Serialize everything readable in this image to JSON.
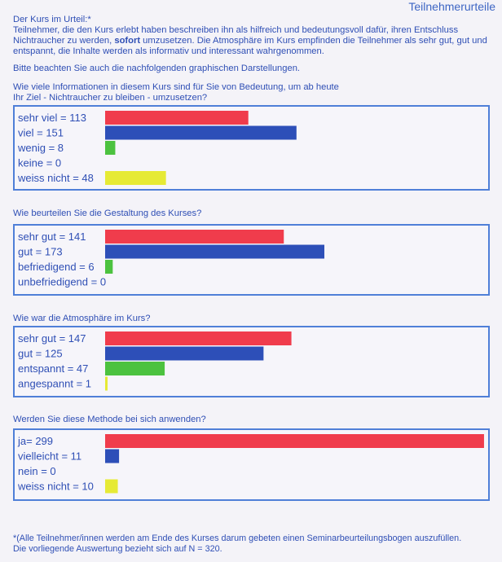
{
  "header": {
    "title": "Teilnehmerurteile"
  },
  "intro": {
    "heading": "Der Kurs im Urteil:*",
    "text_before": "Teilnehmer, die den Kurs erlebt haben beschreiben ihn als hilfreich und bedeutungsvoll dafür, ihren Entschluss Nichtraucher zu werden, ",
    "text_bold": "sofort",
    "text_after": " umzusetzen. Die Atmosphäre im Kurs empfinden die Teilnehmer als sehr gut, gut und entspannt, die Inhalte werden als informativ und interessant wahrgenommen.",
    "note": "Bitte beachten Sie auch die nachfolgenden graphischen Darstellungen."
  },
  "colors": {
    "red": "#f03c4c",
    "blue": "#2d4fb8",
    "green": "#4cc23f",
    "yellow": "#e6ea35",
    "frame": "#4f7fd8",
    "text": "#2f4fb5"
  },
  "chart_data": [
    {
      "type": "bar",
      "orientation": "horizontal",
      "title": "Wie viele Informationen in diesem Kurs sind für Sie von Bedeutung, um ab heute Ihr Ziel - Nichtraucher zu bleiben - umzusetzen?",
      "title_lines": [
        "Wie viele Informationen in diesem Kurs sind für Sie von Bedeutung, um ab heute",
        "Ihr Ziel - Nichtraucher zu bleiben - umzusetzen?"
      ],
      "categories": [
        "sehr viel = 113",
        "viel = 151",
        "wenig = 8",
        "keine = 0",
        "weiss nicht = 48"
      ],
      "values": [
        113,
        151,
        8,
        0,
        48
      ],
      "colors": [
        "#f03c4c",
        "#2d4fb8",
        "#4cc23f",
        "#4cc23f",
        "#e6ea35"
      ]
    },
    {
      "type": "bar",
      "orientation": "horizontal",
      "title": "Wie beurteilen Sie die Gestaltung des Kurses?",
      "title_lines": [
        "Wie beurteilen Sie die Gestaltung des Kurses?"
      ],
      "categories": [
        "sehr gut = 141",
        "gut = 173",
        "befriedigend = 6",
        "unbefriedigend = 0"
      ],
      "values": [
        141,
        173,
        6,
        0
      ],
      "colors": [
        "#f03c4c",
        "#2d4fb8",
        "#4cc23f",
        "#4cc23f"
      ]
    },
    {
      "type": "bar",
      "orientation": "horizontal",
      "title": "Wie war die Atmosphäre im Kurs?",
      "title_lines": [
        "Wie war die Atmosphäre im Kurs?"
      ],
      "categories": [
        "sehr gut = 147",
        "gut = 125",
        "entspannt = 47",
        "angespannt = 1"
      ],
      "values": [
        147,
        125,
        47,
        1
      ],
      "colors": [
        "#f03c4c",
        "#2d4fb8",
        "#4cc23f",
        "#e6ea35"
      ]
    },
    {
      "type": "bar",
      "orientation": "horizontal",
      "title": "Werden Sie diese Methode bei sich anwenden?",
      "title_lines": [
        "Werden Sie diese Methode bei sich anwenden?"
      ],
      "categories": [
        "ja= 299",
        "vielleicht = 11",
        "nein = 0",
        "weiss nicht = 10"
      ],
      "values": [
        299,
        11,
        0,
        10
      ],
      "colors": [
        "#f03c4c",
        "#2d4fb8",
        "#4cc23f",
        "#e6ea35"
      ]
    }
  ],
  "footnote": {
    "line1": "*(Alle Teilnehmer/innen werden am Ende des Kurses darum gebeten einen Seminarbeurteilungsbogen auszufüllen.",
    "line2": "Die vorliegende Auswertung bezieht sich auf N = 320."
  }
}
